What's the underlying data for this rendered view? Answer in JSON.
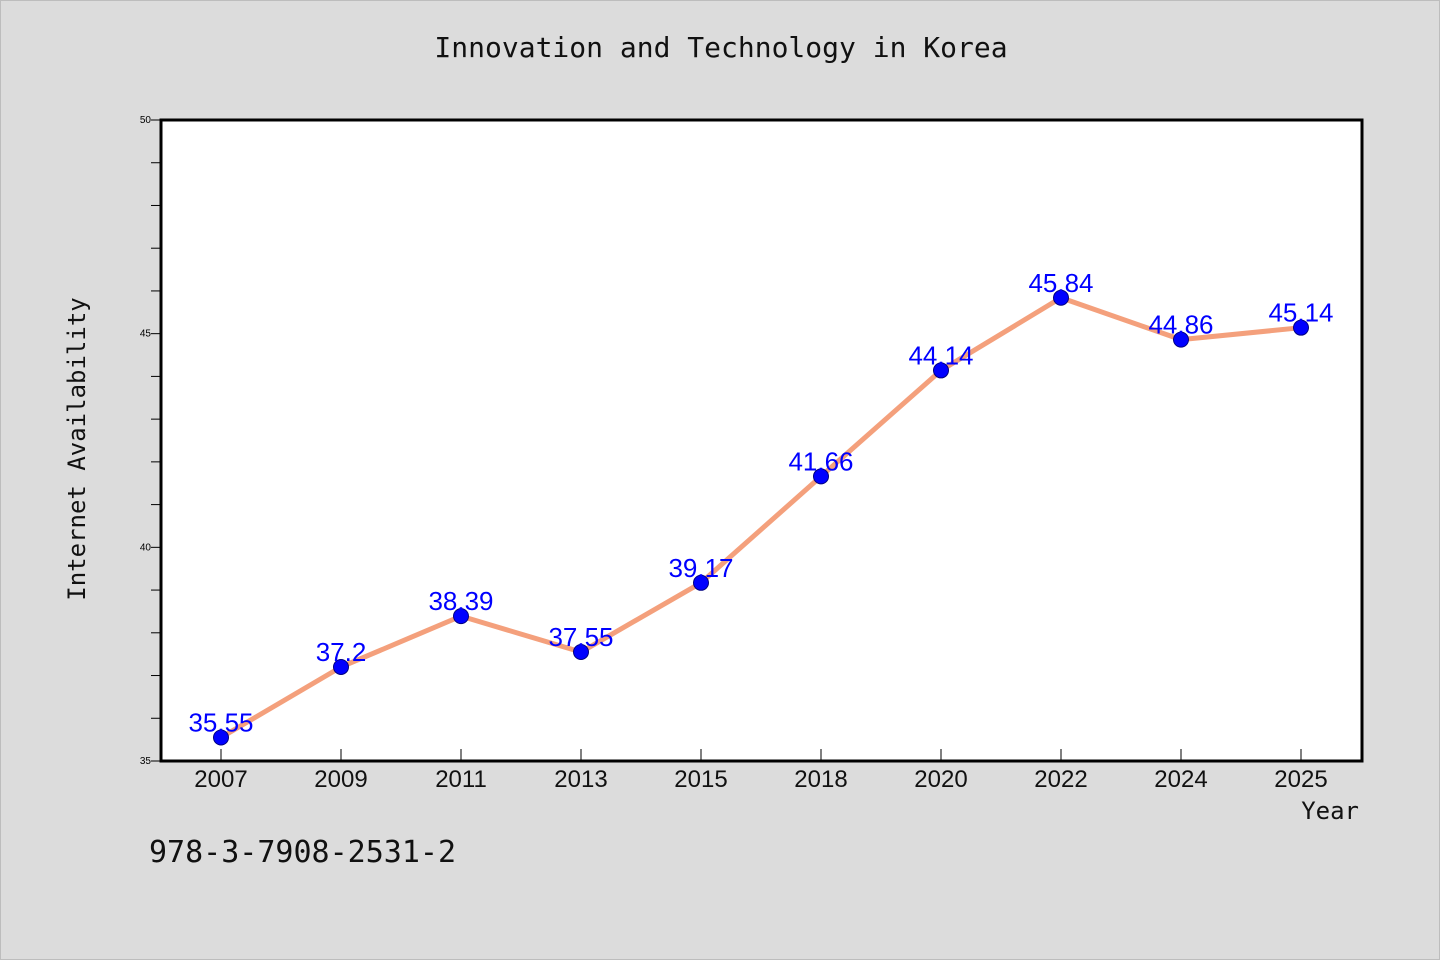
{
  "footer": {
    "code": "978-3-7908-2531-2"
  },
  "chart_data": {
    "type": "line",
    "title": "Innovation and Technology in Korea",
    "xlabel": "Year",
    "ylabel": "Internet Availability",
    "categories": [
      "2007",
      "2009",
      "2011",
      "2013",
      "2015",
      "2018",
      "2020",
      "2022",
      "2024",
      "2025"
    ],
    "series": [
      {
        "values": [
          35.55,
          37.2,
          38.39,
          37.55,
          39.17,
          41.66,
          44.14,
          45.84,
          44.86,
          45.14
        ],
        "line_color": "#f4a07c",
        "marker_color": "#0000ff"
      }
    ],
    "data_labels": [
      "35.55",
      "37.2",
      "38.39",
      "37.55",
      "39.17",
      "41.66",
      "44.14",
      "45.84",
      "44.86",
      "45.14"
    ],
    "ylim": [
      35,
      50
    ],
    "yticks": [
      "35",
      "40",
      "45",
      "50"
    ],
    "grid": false,
    "legend": "none"
  }
}
